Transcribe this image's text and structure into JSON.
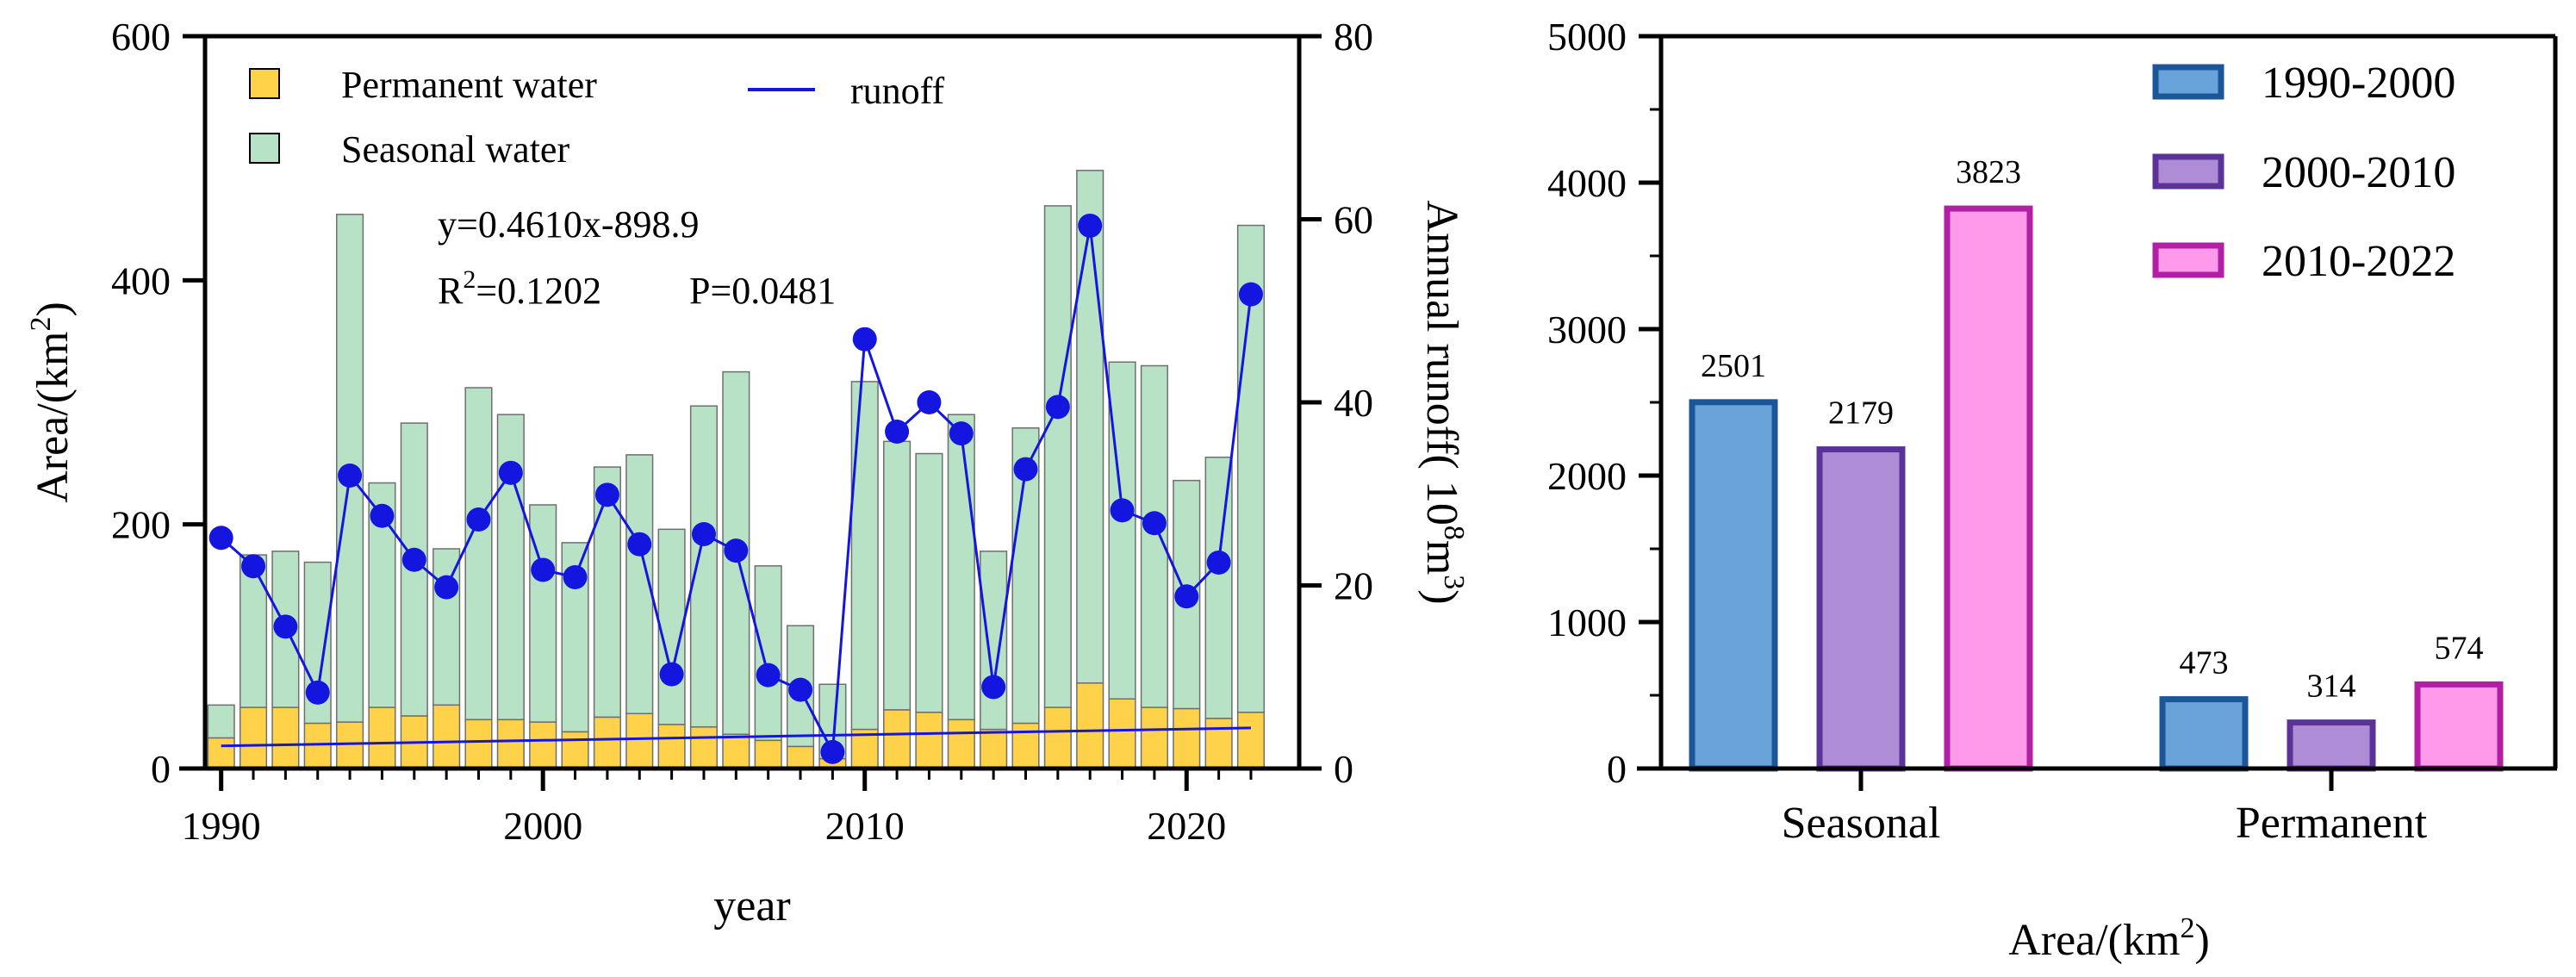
{
  "chart_data": [
    {
      "type": "bar",
      "title": "",
      "xlabel": "year",
      "ylabel": "Area/(km2)",
      "ylabel_parts": {
        "base": "Area/(km",
        "sup": "2",
        "end": ")"
      },
      "y2label": "Annual runoff( 108m3)",
      "y2label_parts": {
        "a": "Annual runoff( 10",
        "s1": "8",
        "b": "m",
        "s2": "3",
        "c": ")"
      },
      "xlim": [
        1989.5,
        2023.5
      ],
      "ylim": [
        0,
        600
      ],
      "y2lim": [
        0,
        80
      ],
      "xticks": [
        1990,
        2000,
        2010,
        2020
      ],
      "yticks": [
        0,
        200,
        400,
        600
      ],
      "y2ticks": [
        0,
        20,
        40,
        60,
        80
      ],
      "x": [
        1990,
        1991,
        1992,
        1993,
        1994,
        1995,
        1996,
        1997,
        1998,
        1999,
        2000,
        2001,
        2002,
        2003,
        2004,
        2005,
        2006,
        2007,
        2008,
        2009,
        2010,
        2011,
        2012,
        2013,
        2014,
        2015,
        2016,
        2017,
        2018,
        2019,
        2020,
        2021,
        2022
      ],
      "series": [
        {
          "name": "Permanent water",
          "color": "#FFD24A",
          "values": [
            25,
            50,
            50,
            37,
            38,
            50,
            43,
            52,
            40,
            40,
            38,
            30,
            42,
            45,
            36,
            34,
            28,
            23,
            18,
            8,
            32,
            48,
            46,
            40,
            32,
            37,
            50,
            70,
            57,
            50,
            49,
            41,
            46
          ]
        },
        {
          "name": "Seasonal water",
          "color": "#B7E2C6",
          "values": [
            27,
            125,
            128,
            132,
            416,
            184,
            240,
            128,
            272,
            250,
            178,
            155,
            205,
            212,
            160,
            263,
            297,
            143,
            99,
            61,
            285,
            220,
            212,
            250,
            146,
            242,
            411,
            420,
            276,
            280,
            187,
            214,
            399
          ]
        }
      ],
      "runoff": {
        "name": "runoff",
        "axis": "right",
        "color": "#1515E0",
        "values": [
          25.2,
          22.1,
          15.5,
          8.3,
          32.0,
          27.6,
          22.8,
          19.8,
          27.2,
          32.3,
          21.7,
          20.9,
          29.9,
          24.5,
          10.3,
          25.6,
          23.8,
          10.2,
          8.6,
          1.8,
          46.9,
          36.8,
          40.0,
          36.6,
          8.9,
          32.7,
          39.5,
          59.3,
          28.2,
          26.8,
          18.8,
          22.5,
          51.8
        ]
      },
      "trend": {
        "slope": 0.461,
        "intercept": -898.9,
        "x_start": 1990,
        "x_end": 2022
      },
      "annotations": {
        "equation": "y=0.4610x-898.9",
        "r2_label": "R",
        "r2_sup": "2",
        "r2_value": "=0.1202",
        "p_value": "P=0.0481"
      },
      "legend": [
        "Permanent water",
        "Seasonal water",
        "runoff"
      ],
      "legend_position": "top-left"
    },
    {
      "type": "bar",
      "title": "",
      "xlabel": "Area/(km2)",
      "xlabel_parts": {
        "base": "Area/(km",
        "sup": "2",
        "end": ")"
      },
      "ylabel": "",
      "ylim": [
        0,
        5000
      ],
      "yticks": [
        0,
        1000,
        2000,
        3000,
        4000,
        5000
      ],
      "categories": [
        "Seasonal",
        "Permanent"
      ],
      "series": [
        {
          "name": "1990-2000",
          "color": "#6AA3DA",
          "edge": "#1B5698",
          "values": [
            2501,
            473
          ]
        },
        {
          "name": "2000-2010",
          "color": "#AE8DD6",
          "edge": "#5B3297",
          "values": [
            2179,
            314
          ]
        },
        {
          "name": "2010-2022",
          "color": "#FF99EA",
          "edge": "#B21FA5",
          "values": [
            3823,
            574
          ]
        }
      ],
      "legend_position": "top-right"
    }
  ]
}
